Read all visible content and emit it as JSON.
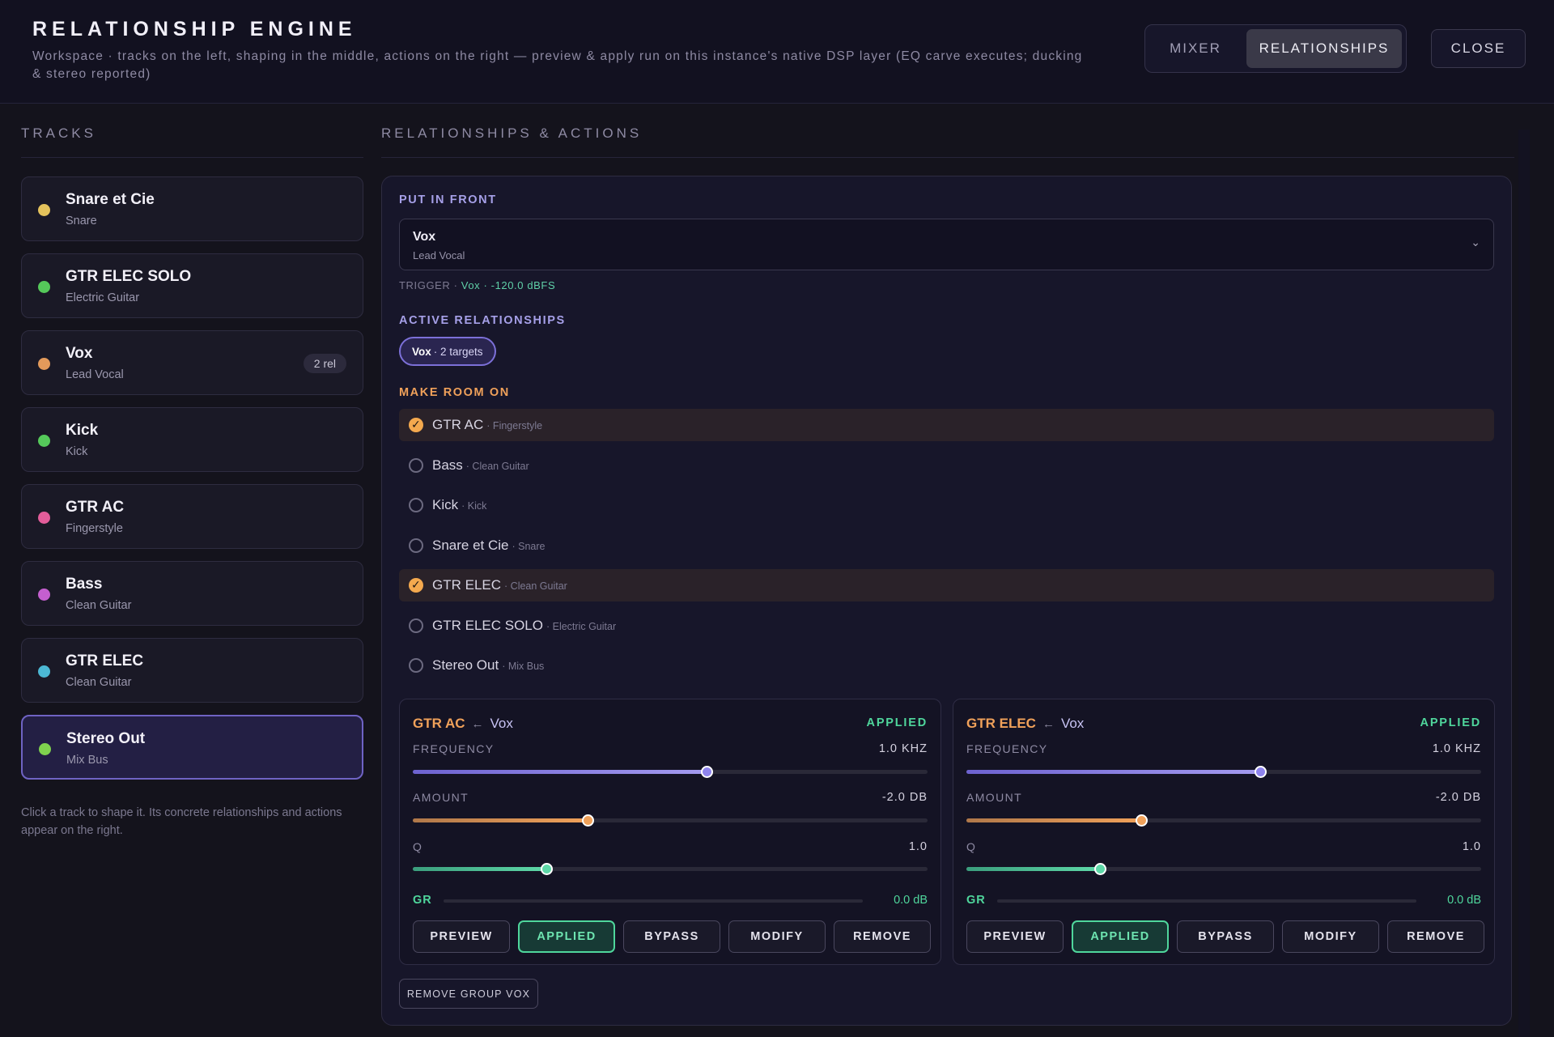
{
  "header": {
    "title": "RELATIONSHIP ENGINE",
    "subtitle": "Workspace · tracks on the left, shaping in the middle, actions on the right — preview & apply run on this instance's native DSP layer (EQ carve executes; ducking & stereo reported)",
    "tabs": [
      "MIXER",
      "RELATIONSHIPS"
    ],
    "active_tab": "RELATIONSHIPS",
    "close_label": "CLOSE"
  },
  "sidebar": {
    "title": "TRACKS",
    "tracks": [
      {
        "name": "Snare et Cie",
        "sub": "Snare",
        "color": "#e4c25c",
        "badge": "",
        "selected": false
      },
      {
        "name": "GTR ELEC SOLO",
        "sub": "Electric Guitar",
        "color": "#55c95a",
        "badge": "",
        "selected": false
      },
      {
        "name": "Vox",
        "sub": "Lead Vocal",
        "color": "#e39a5b",
        "badge": "2 rel",
        "selected": false
      },
      {
        "name": "Kick",
        "sub": "Kick",
        "color": "#55c95a",
        "badge": "",
        "selected": false
      },
      {
        "name": "GTR AC",
        "sub": "Fingerstyle",
        "color": "#e35d9a",
        "badge": "",
        "selected": false
      },
      {
        "name": "Bass",
        "sub": "Clean Guitar",
        "color": "#c55fcf",
        "badge": "",
        "selected": false
      },
      {
        "name": "GTR ELEC",
        "sub": "Clean Guitar",
        "color": "#4cb8d4",
        "badge": "",
        "selected": false
      },
      {
        "name": "Stereo Out",
        "sub": "Mix Bus",
        "color": "#7fd24e",
        "badge": "",
        "selected": true
      }
    ],
    "hint": "Click a track to shape it. Its concrete relationships and actions appear on the right."
  },
  "main": {
    "title": "RELATIONSHIPS & ACTIONS",
    "put_in_front": {
      "label": "PUT IN FRONT",
      "value": "Vox",
      "sub": "Lead Vocal",
      "chevron": "⌄",
      "trigger_prefix": "TRIGGER ·",
      "trigger_track": "Vox",
      "trigger_level": "· -120.0 dBFS"
    },
    "active_relationships": {
      "label": "ACTIVE RELATIONSHIPS",
      "chip_track": "Vox",
      "chip_rest": "· 2 targets"
    },
    "make_room": {
      "label": "MAKE ROOM ON",
      "items": [
        {
          "name": "GTR AC",
          "sub": "· Fingerstyle",
          "checked": true
        },
        {
          "name": "Bass",
          "sub": "· Clean Guitar",
          "checked": false
        },
        {
          "name": "Kick",
          "sub": "· Kick",
          "checked": false
        },
        {
          "name": "Snare et Cie",
          "sub": "· Snare",
          "checked": false
        },
        {
          "name": "GTR ELEC",
          "sub": "· Clean Guitar",
          "checked": true
        },
        {
          "name": "GTR ELEC SOLO",
          "sub": "· Electric Guitar",
          "checked": false
        },
        {
          "name": "Stereo Out",
          "sub": "· Mix Bus",
          "checked": false
        }
      ]
    },
    "cards": [
      {
        "target": "GTR AC",
        "arrow": "←",
        "source": "Vox",
        "status": "APPLIED",
        "frequency_label": "FREQUENCY",
        "frequency_value": "1.0 KHZ",
        "frequency_level": 0.57,
        "amount_label": "AMOUNT",
        "amount_value": "-2.0 DB",
        "amount_level": 0.34,
        "q_label": "Q",
        "q_value": "1.0",
        "q_level": 0.26,
        "gr_label": "GR",
        "gr_value": "0.0 dB",
        "buttons": [
          "PREVIEW",
          "APPLIED",
          "BYPASS",
          "MODIFY",
          "REMOVE"
        ]
      },
      {
        "target": "GTR ELEC",
        "arrow": "←",
        "source": "Vox",
        "status": "APPLIED",
        "frequency_label": "FREQUENCY",
        "frequency_value": "1.0 KHZ",
        "frequency_level": 0.57,
        "amount_label": "AMOUNT",
        "amount_value": "-2.0 DB",
        "amount_level": 0.34,
        "q_label": "Q",
        "q_value": "1.0",
        "q_level": 0.26,
        "gr_label": "GR",
        "gr_value": "0.0 dB",
        "buttons": [
          "PREVIEW",
          "APPLIED",
          "BYPASS",
          "MODIFY",
          "REMOVE"
        ]
      }
    ],
    "remove_group_label": "REMOVE GROUP VOX"
  },
  "colors": {
    "accent_purple": "#7c70d8",
    "accent_orange": "#f0a15a",
    "accent_green": "#4fd69c"
  }
}
